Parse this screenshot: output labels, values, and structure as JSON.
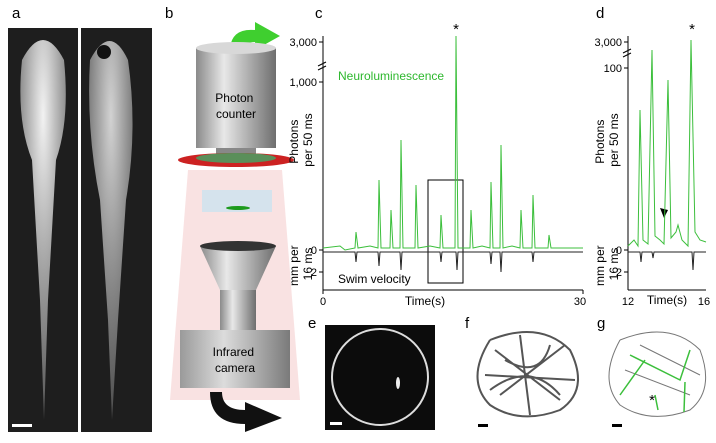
{
  "panels": {
    "a": {
      "label": "a"
    },
    "b": {
      "label": "b",
      "photon_counter": [
        "Photon",
        "counter"
      ],
      "camera": [
        "Infrared",
        "camera"
      ]
    },
    "c": {
      "label": "c",
      "asterisk": "*",
      "legend_top": "Neuroluminescence",
      "legend_bottom": "Swim velocity",
      "y_label_top": [
        "Photons",
        "per 50 ms"
      ],
      "y_label_bottom": [
        "mm per",
        "16 ms"
      ],
      "y_ticks_top": [
        "3,000",
        "1,000",
        "0"
      ],
      "y_ticks_bottom": [
        "2"
      ],
      "x_ticks": [
        "0",
        "30"
      ],
      "x_label": "Time(s)"
    },
    "d": {
      "label": "d",
      "asterisk": "*",
      "y_label_top": [
        "Photons",
        "per 50 ms"
      ],
      "y_label_bottom": [
        "mm per",
        "16 ms"
      ],
      "y_ticks_top": [
        "3,000",
        "100",
        "0"
      ],
      "y_ticks_bottom": [
        "2"
      ],
      "x_ticks": [
        "12",
        "16"
      ],
      "x_label": "Time(s)"
    },
    "e": {
      "label": "e"
    },
    "f": {
      "label": "f"
    },
    "g": {
      "label": "g",
      "asterisk": "*"
    }
  }
}
